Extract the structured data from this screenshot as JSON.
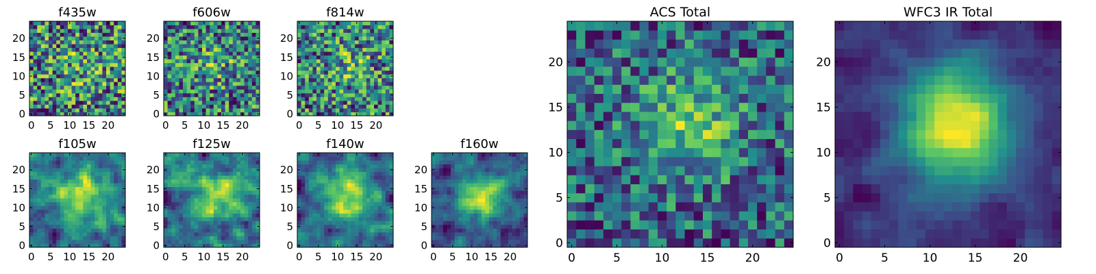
{
  "figure": {
    "colormap": "viridis",
    "colors": [
      "#440154",
      "#3b528b",
      "#21918c",
      "#5ec962",
      "#fde725"
    ]
  },
  "chart_data": [
    {
      "type": "heatmap",
      "title": "f435w",
      "xlabel": "",
      "ylabel": "",
      "xlim": [
        -0.5,
        24.5
      ],
      "ylim": [
        -0.5,
        24.5
      ],
      "grid": false,
      "xticks": [
        0,
        5,
        10,
        15,
        20
      ],
      "yticks": [
        0,
        5,
        10,
        15,
        20
      ],
      "xtick_labels": [
        "0",
        "5",
        "10",
        "15",
        "20"
      ],
      "ytick_labels": [
        "0",
        "5",
        "10",
        "15",
        "20"
      ],
      "size": 25,
      "noise": 0.85,
      "blob": 0.1
    },
    {
      "type": "heatmap",
      "title": "f606w",
      "xlabel": "",
      "ylabel": "",
      "xlim": [
        -0.5,
        24.5
      ],
      "ylim": [
        -0.5,
        24.5
      ],
      "grid": false,
      "xticks": [
        0,
        5,
        10,
        15,
        20
      ],
      "yticks": [
        0,
        5,
        10,
        15,
        20
      ],
      "xtick_labels": [
        "0",
        "5",
        "10",
        "15",
        "20"
      ],
      "ytick_labels": [
        "0",
        "5",
        "10",
        "15",
        "20"
      ],
      "size": 25,
      "noise": 0.85,
      "blob": 0.15
    },
    {
      "type": "heatmap",
      "title": "f814w",
      "xlabel": "",
      "ylabel": "",
      "xlim": [
        -0.5,
        24.5
      ],
      "ylim": [
        -0.5,
        24.5
      ],
      "grid": false,
      "xticks": [
        0,
        5,
        10,
        15,
        20
      ],
      "yticks": [
        0,
        5,
        10,
        15,
        20
      ],
      "xtick_labels": [
        "0",
        "5",
        "10",
        "15",
        "20"
      ],
      "ytick_labels": [
        "0",
        "5",
        "10",
        "15",
        "20"
      ],
      "size": 25,
      "noise": 0.8,
      "blob": 0.15
    },
    {
      "type": "heatmap",
      "title": "f105w",
      "xlabel": "",
      "ylabel": "",
      "xlim": [
        -0.5,
        24.5
      ],
      "ylim": [
        -0.5,
        24.5
      ],
      "grid": false,
      "xticks": [
        0,
        5,
        10,
        15,
        20
      ],
      "yticks": [
        0,
        5,
        10,
        15,
        20
      ],
      "xtick_labels": [
        "0",
        "5",
        "10",
        "15",
        "20"
      ],
      "ytick_labels": [
        "0",
        "5",
        "10",
        "15",
        "20"
      ],
      "size": 25,
      "noise": 0.65,
      "blob": 0.35,
      "smooth": true
    },
    {
      "type": "heatmap",
      "title": "f125w",
      "xlabel": "",
      "ylabel": "",
      "xlim": [
        -0.5,
        24.5
      ],
      "ylim": [
        -0.5,
        24.5
      ],
      "grid": false,
      "xticks": [
        0,
        5,
        10,
        15,
        20
      ],
      "yticks": [
        0,
        5,
        10,
        15,
        20
      ],
      "xtick_labels": [
        "0",
        "5",
        "10",
        "15",
        "20"
      ],
      "ytick_labels": [
        "0",
        "5",
        "10",
        "15",
        "20"
      ],
      "size": 25,
      "noise": 0.6,
      "blob": 0.3,
      "smooth": true
    },
    {
      "type": "heatmap",
      "title": "f140w",
      "xlabel": "",
      "ylabel": "",
      "xlim": [
        -0.5,
        24.5
      ],
      "ylim": [
        -0.5,
        24.5
      ],
      "grid": false,
      "xticks": [
        0,
        5,
        10,
        15,
        20
      ],
      "yticks": [
        0,
        5,
        10,
        15,
        20
      ],
      "xtick_labels": [
        "0",
        "5",
        "10",
        "15",
        "20"
      ],
      "ytick_labels": [
        "0",
        "5",
        "10",
        "15",
        "20"
      ],
      "size": 25,
      "noise": 0.65,
      "blob": 0.35,
      "smooth": true
    },
    {
      "type": "heatmap",
      "title": "f160w",
      "xlabel": "",
      "ylabel": "",
      "xlim": [
        -0.5,
        24.5
      ],
      "ylim": [
        -0.5,
        24.5
      ],
      "grid": false,
      "xticks": [
        0,
        5,
        10,
        15,
        20
      ],
      "yticks": [
        0,
        5,
        10,
        15,
        20
      ],
      "xtick_labels": [
        "0",
        "5",
        "10",
        "15",
        "20"
      ],
      "ytick_labels": [
        "0",
        "5",
        "10",
        "15",
        "20"
      ],
      "size": 25,
      "noise": 0.6,
      "blob": 0.45,
      "smooth": true
    },
    {
      "type": "heatmap",
      "title": "ACS Total",
      "xlabel": "",
      "ylabel": "",
      "xlim": [
        -0.5,
        24.5
      ],
      "ylim": [
        -0.5,
        24.5
      ],
      "grid": false,
      "xticks": [
        0,
        5,
        10,
        15,
        20
      ],
      "yticks": [
        0,
        5,
        10,
        15,
        20
      ],
      "xtick_labels": [
        "0",
        "5",
        "10",
        "15",
        "20"
      ],
      "ytick_labels": [
        "0",
        "5",
        "10",
        "15",
        "20"
      ],
      "size": 25,
      "noise": 0.55,
      "blob": 0.3
    },
    {
      "type": "heatmap",
      "title": "WFC3 IR Total",
      "xlabel": "",
      "ylabel": "",
      "xlim": [
        -0.5,
        24.5
      ],
      "ylim": [
        -0.5,
        24.5
      ],
      "grid": false,
      "xticks": [
        0,
        5,
        10,
        15,
        20
      ],
      "yticks": [
        0,
        5,
        10,
        15,
        20
      ],
      "xtick_labels": [
        "0",
        "5",
        "10",
        "15",
        "20"
      ],
      "ytick_labels": [
        "0",
        "5",
        "10",
        "15",
        "20"
      ],
      "size": 25,
      "noise": 0.35,
      "blob": 0.65,
      "smooth": true
    }
  ]
}
